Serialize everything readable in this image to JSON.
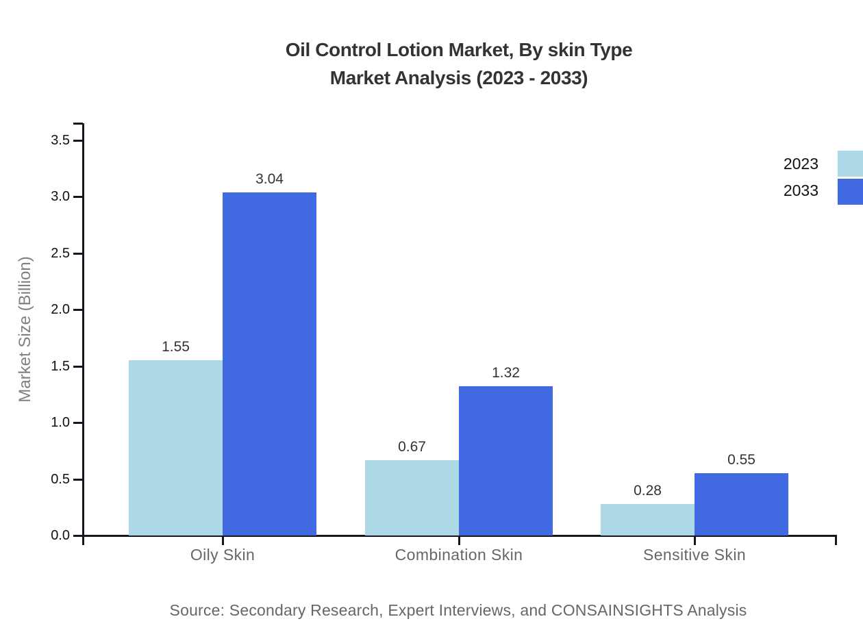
{
  "title": {
    "line1": "Oil Control Lotion Market, By skin Type",
    "line2": "Market Analysis (2023 - 2033)"
  },
  "source": "Source: Secondary Research, Expert Interviews, and CONSAINSIGHTS Analysis",
  "chart_data": {
    "type": "bar",
    "categories": [
      "Oily Skin",
      "Combination Skin",
      "Sensitive Skin"
    ],
    "series": [
      {
        "name": "2023",
        "color": "#ADD8E6",
        "values": [
          1.55,
          0.67,
          0.28
        ]
      },
      {
        "name": "2033",
        "color": "#4169E1",
        "values": [
          3.04,
          1.32,
          0.55
        ]
      }
    ],
    "title": "Oil Control Lotion Market, By skin Type Market Analysis (2023 - 2033)",
    "xlabel": "",
    "ylabel": "Market Size (Billion)",
    "ylim": [
      0,
      3.65
    ],
    "yticks": [
      0.0,
      0.5,
      1.0,
      1.5,
      2.0,
      2.5,
      3.0,
      3.5
    ],
    "grid": false,
    "legend_position": "top-right",
    "value_labels": true,
    "axis_color": "#16161f"
  }
}
